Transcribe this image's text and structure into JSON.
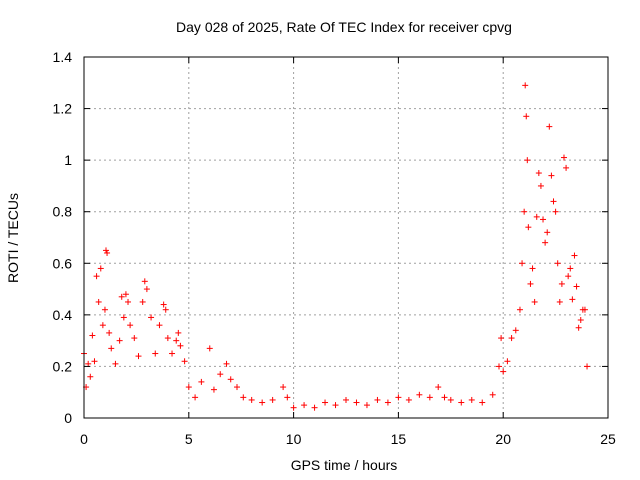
{
  "chart_data": {
    "type": "scatter",
    "title": "Day 028 of 2025, Rate Of TEC Index for receiver cpvg",
    "xlabel": "GPS time / hours",
    "ylabel": "ROTI / TECUs",
    "xlim": [
      0,
      25
    ],
    "ylim": [
      0,
      1.4
    ],
    "x_ticks": [
      0,
      5,
      10,
      15,
      20,
      25
    ],
    "x_tick_labels": [
      "0",
      "5",
      "10",
      "15",
      "20",
      "25"
    ],
    "y_ticks": [
      0,
      0.2,
      0.4,
      0.6,
      0.8,
      1.0,
      1.2,
      1.4
    ],
    "y_tick_labels": [
      "0",
      "0.2",
      "0.4",
      "0.6",
      "0.8",
      "1",
      "1.2",
      "1.4"
    ],
    "grid": true,
    "marker": "+",
    "colors": {
      "points": "#ff0000",
      "grid": "#a0a0a0",
      "axes": "#000000"
    },
    "series": [
      {
        "points": [
          [
            0.0,
            0.25
          ],
          [
            0.1,
            0.12
          ],
          [
            0.2,
            0.21
          ],
          [
            0.3,
            0.16
          ],
          [
            0.4,
            0.32
          ],
          [
            0.5,
            0.22
          ],
          [
            0.6,
            0.55
          ],
          [
            0.7,
            0.45
          ],
          [
            0.8,
            0.58
          ],
          [
            0.9,
            0.36
          ],
          [
            1.0,
            0.42
          ],
          [
            1.05,
            0.65
          ],
          [
            1.1,
            0.64
          ],
          [
            1.2,
            0.33
          ],
          [
            1.3,
            0.27
          ],
          [
            1.5,
            0.21
          ],
          [
            1.7,
            0.3
          ],
          [
            1.8,
            0.47
          ],
          [
            1.9,
            0.39
          ],
          [
            2.0,
            0.48
          ],
          [
            2.1,
            0.45
          ],
          [
            2.2,
            0.36
          ],
          [
            2.4,
            0.31
          ],
          [
            2.6,
            0.24
          ],
          [
            2.8,
            0.45
          ],
          [
            2.9,
            0.53
          ],
          [
            3.0,
            0.5
          ],
          [
            3.2,
            0.39
          ],
          [
            3.4,
            0.25
          ],
          [
            3.6,
            0.36
          ],
          [
            3.8,
            0.44
          ],
          [
            3.9,
            0.42
          ],
          [
            4.0,
            0.31
          ],
          [
            4.2,
            0.25
          ],
          [
            4.4,
            0.3
          ],
          [
            4.5,
            0.33
          ],
          [
            4.6,
            0.28
          ],
          [
            4.8,
            0.22
          ],
          [
            5.0,
            0.12
          ],
          [
            5.3,
            0.08
          ],
          [
            5.6,
            0.14
          ],
          [
            6.0,
            0.27
          ],
          [
            6.2,
            0.11
          ],
          [
            6.5,
            0.17
          ],
          [
            6.8,
            0.21
          ],
          [
            7.0,
            0.15
          ],
          [
            7.3,
            0.12
          ],
          [
            7.6,
            0.08
          ],
          [
            8.0,
            0.07
          ],
          [
            8.5,
            0.06
          ],
          [
            9.0,
            0.07
          ],
          [
            9.5,
            0.12
          ],
          [
            9.7,
            0.08
          ],
          [
            10.0,
            0.04
          ],
          [
            10.5,
            0.05
          ],
          [
            11.0,
            0.04
          ],
          [
            11.5,
            0.06
          ],
          [
            12.0,
            0.05
          ],
          [
            12.5,
            0.07
          ],
          [
            13.0,
            0.06
          ],
          [
            13.5,
            0.05
          ],
          [
            14.0,
            0.07
          ],
          [
            14.5,
            0.06
          ],
          [
            15.0,
            0.08
          ],
          [
            15.5,
            0.07
          ],
          [
            16.0,
            0.09
          ],
          [
            16.5,
            0.08
          ],
          [
            16.9,
            0.12
          ],
          [
            17.2,
            0.08
          ],
          [
            17.5,
            0.07
          ],
          [
            18.0,
            0.06
          ],
          [
            18.5,
            0.07
          ],
          [
            19.0,
            0.06
          ],
          [
            19.5,
            0.09
          ],
          [
            19.8,
            0.2
          ],
          [
            19.9,
            0.31
          ],
          [
            20.0,
            0.18
          ],
          [
            20.2,
            0.22
          ],
          [
            20.4,
            0.31
          ],
          [
            20.6,
            0.34
          ],
          [
            20.8,
            0.42
          ],
          [
            20.9,
            0.6
          ],
          [
            21.0,
            0.8
          ],
          [
            21.05,
            1.29
          ],
          [
            21.1,
            1.17
          ],
          [
            21.15,
            1.0
          ],
          [
            21.2,
            0.74
          ],
          [
            21.3,
            0.52
          ],
          [
            21.4,
            0.58
          ],
          [
            21.5,
            0.45
          ],
          [
            21.6,
            0.78
          ],
          [
            21.7,
            0.95
          ],
          [
            21.8,
            0.9
          ],
          [
            21.9,
            0.77
          ],
          [
            22.0,
            0.68
          ],
          [
            22.1,
            0.72
          ],
          [
            22.2,
            1.13
          ],
          [
            22.3,
            0.94
          ],
          [
            22.4,
            0.84
          ],
          [
            22.5,
            0.8
          ],
          [
            22.6,
            0.6
          ],
          [
            22.7,
            0.45
          ],
          [
            22.8,
            0.52
          ],
          [
            22.9,
            1.01
          ],
          [
            23.0,
            0.97
          ],
          [
            23.1,
            0.55
          ],
          [
            23.2,
            0.58
          ],
          [
            23.3,
            0.46
          ],
          [
            23.4,
            0.63
          ],
          [
            23.5,
            0.51
          ],
          [
            23.6,
            0.35
          ],
          [
            23.7,
            0.38
          ],
          [
            23.8,
            0.42
          ],
          [
            23.9,
            0.42
          ],
          [
            24.0,
            0.2
          ]
        ]
      }
    ]
  }
}
